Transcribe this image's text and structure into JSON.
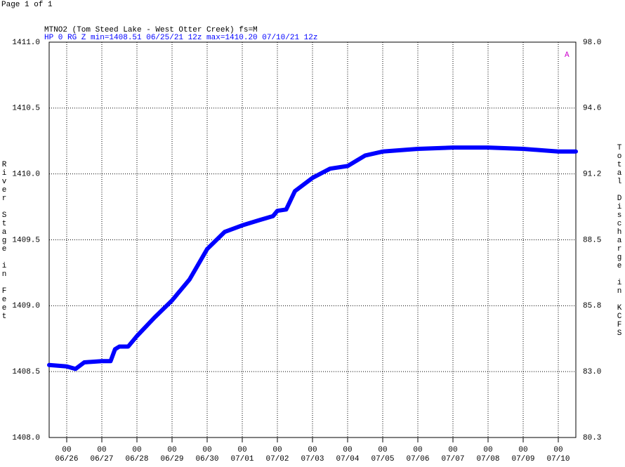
{
  "page": "Page 1 of 1",
  "chart_data": {
    "type": "line",
    "title": "MTNO2 (Tom Steed Lake - West Otter Creek) fs=M",
    "subtitle": "HP 0 RG Z min=1408.51 06/25/21 12z max=1410.20 07/10/21 12z",
    "annotation": "A",
    "ylabel": "River Stage in Feet",
    "y2label": "Total Discharge in KCFS",
    "ylim": [
      1408.0,
      1411.0
    ],
    "yticks": [
      {
        "value": 1408.0,
        "label": "1408.0"
      },
      {
        "value": 1408.5,
        "label": "1408.5"
      },
      {
        "value": 1409.0,
        "label": "1409.0"
      },
      {
        "value": 1409.5,
        "label": "1409.5"
      },
      {
        "value": 1410.0,
        "label": "1410.0"
      },
      {
        "value": 1410.5,
        "label": "1410.5"
      },
      {
        "value": 1411.0,
        "label": "1411.0"
      }
    ],
    "y2lim": [
      80.3,
      98.0
    ],
    "y2ticks": [
      80.3,
      {
        "value": 83.0,
        "label": "83.0"
      },
      85.8,
      88.5,
      91.2,
      94.6,
      {
        "value": 98.0,
        "label": "98.0"
      }
    ],
    "xlim": [
      "06/25 12",
      "07/10 12"
    ],
    "xticks": [
      {
        "hour": "00",
        "date": "06/26"
      },
      {
        "hour": "00",
        "date": "06/27"
      },
      {
        "hour": "00",
        "date": "06/28"
      },
      {
        "hour": "00",
        "date": "06/29"
      },
      {
        "hour": "00",
        "date": "06/30"
      },
      {
        "hour": "00",
        "date": "07/01"
      },
      {
        "hour": "00",
        "date": "07/02"
      },
      {
        "hour": "00",
        "date": "07/03"
      },
      {
        "hour": "00",
        "date": "07/04"
      },
      {
        "hour": "00",
        "date": "07/05"
      },
      {
        "hour": "00",
        "date": "07/06"
      },
      {
        "hour": "00",
        "date": "07/07"
      },
      {
        "hour": "00",
        "date": "07/08"
      },
      {
        "hour": "00",
        "date": "07/09"
      },
      {
        "hour": "00",
        "date": "07/10"
      }
    ],
    "grid": true,
    "series": [
      {
        "name": "River Stage",
        "color": "#0000ff",
        "x": [
          "06/25 12",
          "06/26 00",
          "06/26 06",
          "06/26 12",
          "06/27 00",
          "06/27 06",
          "06/27 09",
          "06/27 12",
          "06/27 18",
          "06/28 00",
          "06/28 12",
          "06/29 00",
          "06/29 12",
          "06/30 00",
          "06/30 12",
          "07/01 00",
          "07/01 12",
          "07/01 21",
          "07/02 00",
          "07/02 06",
          "07/02 12",
          "07/03 00",
          "07/03 12",
          "07/04 00",
          "07/04 12",
          "07/05 00",
          "07/05 12",
          "07/06 00",
          "07/07 00",
          "07/08 00",
          "07/09 00",
          "07/09 12",
          "07/10 00",
          "07/10 12"
        ],
        "values": [
          1408.55,
          1408.54,
          1408.52,
          1408.57,
          1408.58,
          1408.58,
          1408.67,
          1408.69,
          1408.69,
          1408.77,
          1408.91,
          1409.04,
          1409.2,
          1409.43,
          1409.56,
          1409.61,
          1409.65,
          1409.68,
          1409.72,
          1409.73,
          1409.87,
          1409.97,
          1410.04,
          1410.06,
          1410.14,
          1410.17,
          1410.18,
          1410.19,
          1410.2,
          1410.2,
          1410.19,
          1410.18,
          1410.17,
          1410.17
        ]
      }
    ]
  }
}
